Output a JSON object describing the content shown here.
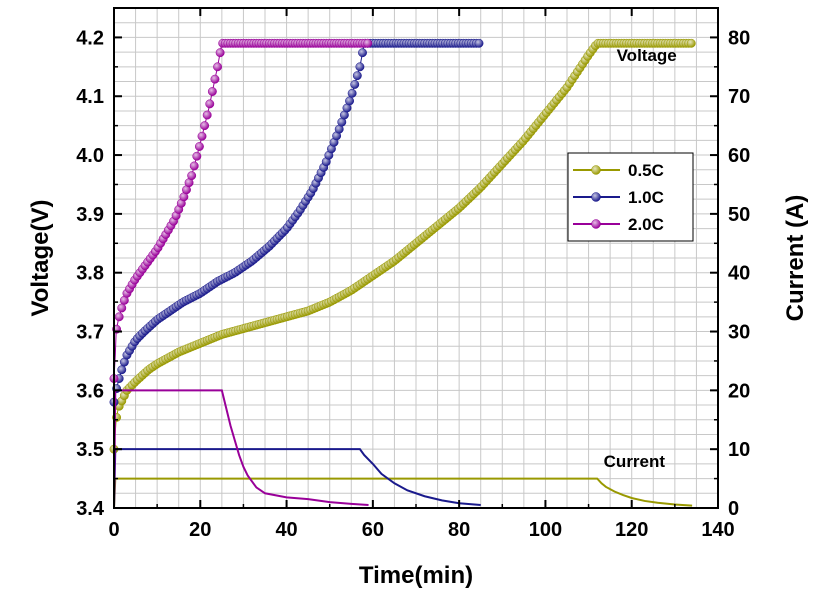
{
  "chart_data": {
    "type": "line",
    "xlabel": "Time(min)",
    "ylabel_left": "Voltage(V)",
    "ylabel_right": "Current (A)",
    "xlim": [
      0,
      140
    ],
    "ylim_left": [
      3.4,
      4.25
    ],
    "ylim_right": [
      0,
      85
    ],
    "x_ticks": [
      0,
      20,
      40,
      60,
      80,
      100,
      120,
      140
    ],
    "y_ticks_left": [
      3.4,
      3.5,
      3.6,
      3.7,
      3.8,
      3.9,
      4.0,
      4.1,
      4.2
    ],
    "y_ticks_right": [
      0,
      10,
      20,
      30,
      40,
      50,
      60,
      70,
      80
    ],
    "grid": true,
    "legend_position": "right",
    "annotations": [
      "Voltage",
      "Current"
    ],
    "series": [
      {
        "name": "0.5C",
        "color": "#999900",
        "voltage": {
          "x": [
            0,
            0.5,
            1,
            2,
            3,
            5,
            8,
            10,
            15,
            20,
            25,
            30,
            35,
            40,
            45,
            50,
            55,
            60,
            65,
            70,
            75,
            80,
            85,
            90,
            95,
            100,
            105,
            110,
            112,
            115,
            120,
            125,
            130,
            134
          ],
          "y": [
            3.5,
            3.55,
            3.57,
            3.585,
            3.6,
            3.615,
            3.635,
            3.645,
            3.665,
            3.68,
            3.695,
            3.705,
            3.715,
            3.725,
            3.735,
            3.75,
            3.77,
            3.795,
            3.82,
            3.85,
            3.88,
            3.91,
            3.945,
            3.985,
            4.025,
            4.07,
            4.115,
            4.17,
            4.19,
            4.19,
            4.19,
            4.19,
            4.19,
            4.19
          ]
        },
        "current": {
          "x": [
            0,
            0.3,
            111.5,
            112,
            113,
            114,
            116,
            118,
            120,
            123,
            126,
            130,
            134
          ],
          "y": [
            0,
            5,
            5,
            5,
            4.2,
            3.6,
            2.8,
            2.2,
            1.7,
            1.2,
            0.9,
            0.6,
            0.4
          ]
        }
      },
      {
        "name": "1.0C",
        "color": "#1a1a8c",
        "voltage": {
          "x": [
            0,
            0.5,
            1,
            2,
            3,
            5,
            7,
            10,
            13,
            16,
            20,
            24,
            28,
            32,
            36,
            40,
            43,
            46,
            49,
            52,
            55,
            57,
            58,
            60,
            65,
            70,
            75,
            80,
            85
          ],
          "y": [
            3.58,
            3.6,
            3.615,
            3.64,
            3.66,
            3.685,
            3.7,
            3.72,
            3.735,
            3.75,
            3.765,
            3.785,
            3.8,
            3.82,
            3.845,
            3.875,
            3.905,
            3.94,
            3.985,
            4.04,
            4.1,
            4.15,
            4.19,
            4.19,
            4.19,
            4.19,
            4.19,
            4.19,
            4.19
          ]
        },
        "current": {
          "x": [
            0,
            0.3,
            56,
            57,
            58,
            60,
            62,
            65,
            68,
            72,
            76,
            80,
            85
          ],
          "y": [
            0,
            10,
            10,
            10,
            9,
            7.5,
            5.8,
            4.2,
            3,
            2,
            1.3,
            0.8,
            0.5
          ]
        }
      },
      {
        "name": "2.0C",
        "color": "#990099",
        "voltage": {
          "x": [
            0,
            0.3,
            0.5,
            1,
            2,
            3,
            5,
            7,
            10,
            12,
            14,
            16,
            18,
            20,
            22,
            24,
            25,
            30,
            35,
            40,
            45,
            50,
            55,
            59
          ],
          "y": [
            3.62,
            3.66,
            3.7,
            3.72,
            3.745,
            3.765,
            3.79,
            3.81,
            3.84,
            3.865,
            3.89,
            3.925,
            3.965,
            4.02,
            4.08,
            4.15,
            4.19,
            4.19,
            4.19,
            4.19,
            4.19,
            4.19,
            4.19,
            4.19
          ]
        },
        "current": {
          "x": [
            0,
            0.3,
            24.5,
            25,
            26,
            27,
            28,
            29,
            30,
            31,
            33,
            35,
            40,
            45,
            50,
            55,
            59
          ],
          "y": [
            0,
            20,
            20,
            20,
            17,
            14,
            11.5,
            9,
            7,
            5.5,
            3.5,
            2.5,
            1.8,
            1.5,
            1.0,
            0.7,
            0.5
          ]
        }
      }
    ]
  }
}
